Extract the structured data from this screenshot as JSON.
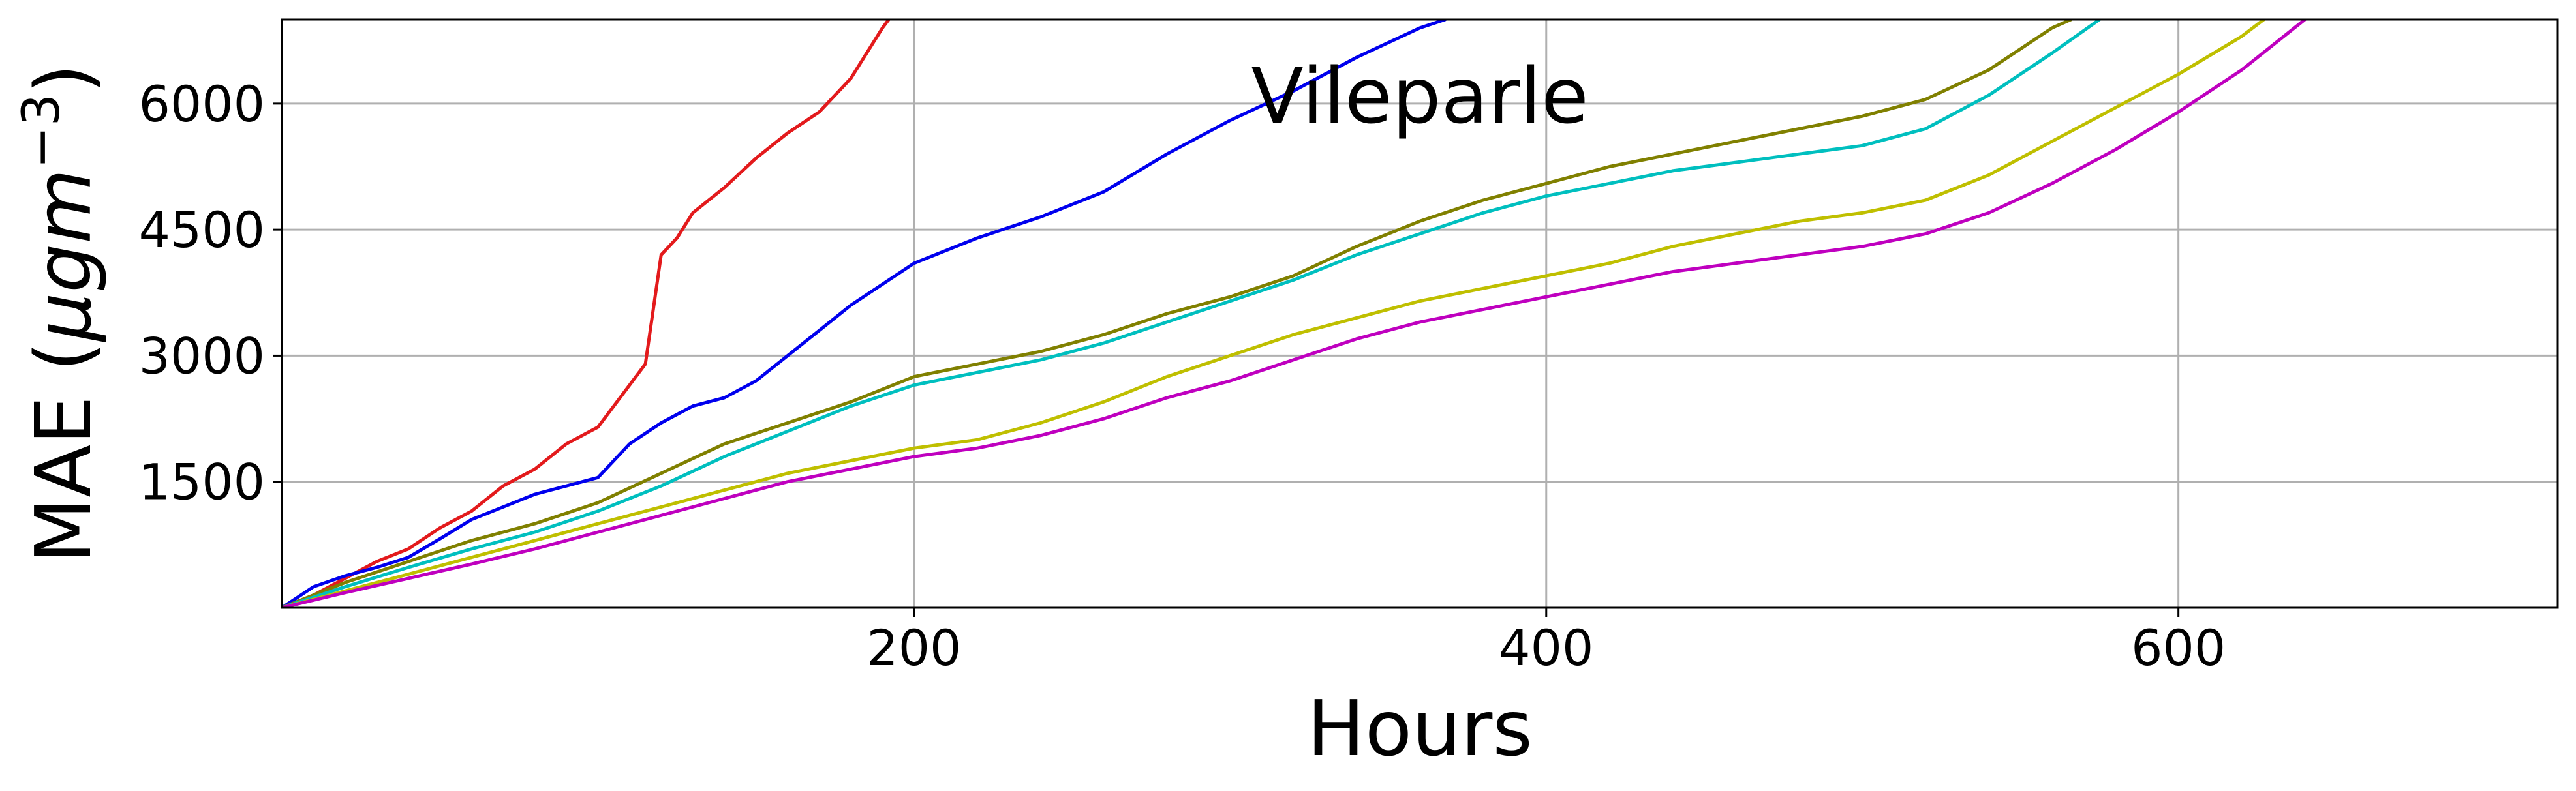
{
  "chart_data": {
    "type": "line",
    "title": "Vileparle",
    "xlabel": "Hours",
    "ylabel": "MAE (μgm⁻³)",
    "ylabel_main": "MAE (",
    "ylabel_mu": "μgm",
    "ylabel_exp": "−3",
    "ylabel_close": ")",
    "xlim": [
      0,
      720
    ],
    "ylim": [
      0,
      7000
    ],
    "xticks": [
      200,
      400,
      600
    ],
    "yticks": [
      1500,
      3000,
      4500,
      6000
    ],
    "xtick_labels": [
      "200",
      "400",
      "600"
    ],
    "ytick_labels": [
      "1500",
      "3000",
      "4500",
      "6000"
    ],
    "grid": true,
    "series": [
      {
        "color": "#e31a1c",
        "x": [
          0,
          10,
          20,
          30,
          40,
          50,
          60,
          70,
          80,
          90,
          100,
          110,
          115,
          120,
          125,
          130,
          140,
          150,
          160,
          170,
          180,
          190,
          192
        ],
        "y": [
          0,
          150,
          350,
          550,
          700,
          950,
          1150,
          1450,
          1650,
          1950,
          2150,
          2650,
          2900,
          4200,
          4400,
          4700,
          5000,
          5350,
          5650,
          5900,
          6300,
          6900,
          7000
        ]
      },
      {
        "color": "#0000ee",
        "x": [
          0,
          10,
          20,
          30,
          40,
          50,
          60,
          70,
          80,
          90,
          100,
          110,
          120,
          130,
          140,
          150,
          160,
          170,
          180,
          190,
          200,
          220,
          240,
          260,
          280,
          300,
          320,
          340,
          360,
          368
        ],
        "y": [
          0,
          250,
          380,
          480,
          600,
          820,
          1050,
          1200,
          1350,
          1450,
          1550,
          1950,
          2200,
          2400,
          2500,
          2700,
          3000,
          3300,
          3600,
          3850,
          4100,
          4400,
          4650,
          4950,
          5400,
          5800,
          6150,
          6550,
          6900,
          7000
        ]
      },
      {
        "color": "#808000",
        "x": [
          0,
          20,
          40,
          60,
          80,
          100,
          120,
          140,
          160,
          180,
          200,
          220,
          240,
          260,
          280,
          300,
          320,
          340,
          360,
          380,
          400,
          420,
          440,
          460,
          480,
          500,
          520,
          540,
          560,
          566
        ],
        "y": [
          0,
          300,
          550,
          800,
          1000,
          1250,
          1600,
          1950,
          2200,
          2450,
          2750,
          2900,
          3050,
          3250,
          3500,
          3700,
          3950,
          4300,
          4600,
          4850,
          5050,
          5250,
          5400,
          5550,
          5700,
          5850,
          6050,
          6400,
          6900,
          7000
        ]
      },
      {
        "color": "#00bfbf",
        "x": [
          0,
          20,
          40,
          60,
          80,
          100,
          120,
          140,
          160,
          180,
          200,
          220,
          240,
          260,
          280,
          300,
          320,
          340,
          360,
          380,
          400,
          420,
          440,
          460,
          480,
          500,
          520,
          540,
          560,
          575
        ],
        "y": [
          0,
          250,
          480,
          700,
          900,
          1150,
          1450,
          1800,
          2100,
          2400,
          2650,
          2800,
          2950,
          3150,
          3400,
          3650,
          3900,
          4200,
          4450,
          4700,
          4900,
          5050,
          5200,
          5300,
          5400,
          5500,
          5700,
          6100,
          6600,
          7000
        ]
      },
      {
        "color": "#bfbf00",
        "x": [
          0,
          20,
          40,
          60,
          80,
          100,
          120,
          140,
          160,
          180,
          200,
          220,
          240,
          260,
          280,
          300,
          320,
          340,
          360,
          380,
          400,
          420,
          440,
          460,
          480,
          500,
          520,
          540,
          560,
          580,
          600,
          620,
          627
        ],
        "y": [
          0,
          200,
          400,
          600,
          800,
          1000,
          1200,
          1400,
          1600,
          1750,
          1900,
          2000,
          2200,
          2450,
          2750,
          3000,
          3250,
          3450,
          3650,
          3800,
          3950,
          4100,
          4300,
          4450,
          4600,
          4700,
          4850,
          5150,
          5550,
          5950,
          6350,
          6800,
          7000
        ]
      },
      {
        "color": "#bf00bf",
        "x": [
          0,
          20,
          40,
          60,
          80,
          100,
          120,
          140,
          160,
          180,
          200,
          220,
          240,
          260,
          280,
          300,
          320,
          340,
          360,
          380,
          400,
          420,
          440,
          460,
          480,
          500,
          520,
          540,
          560,
          580,
          600,
          620,
          640
        ],
        "y": [
          0,
          180,
          350,
          520,
          700,
          900,
          1100,
          1300,
          1500,
          1650,
          1800,
          1900,
          2050,
          2250,
          2500,
          2700,
          2950,
          3200,
          3400,
          3550,
          3700,
          3850,
          4000,
          4100,
          4200,
          4300,
          4450,
          4700,
          5050,
          5450,
          5900,
          6400,
          7000
        ]
      }
    ]
  }
}
